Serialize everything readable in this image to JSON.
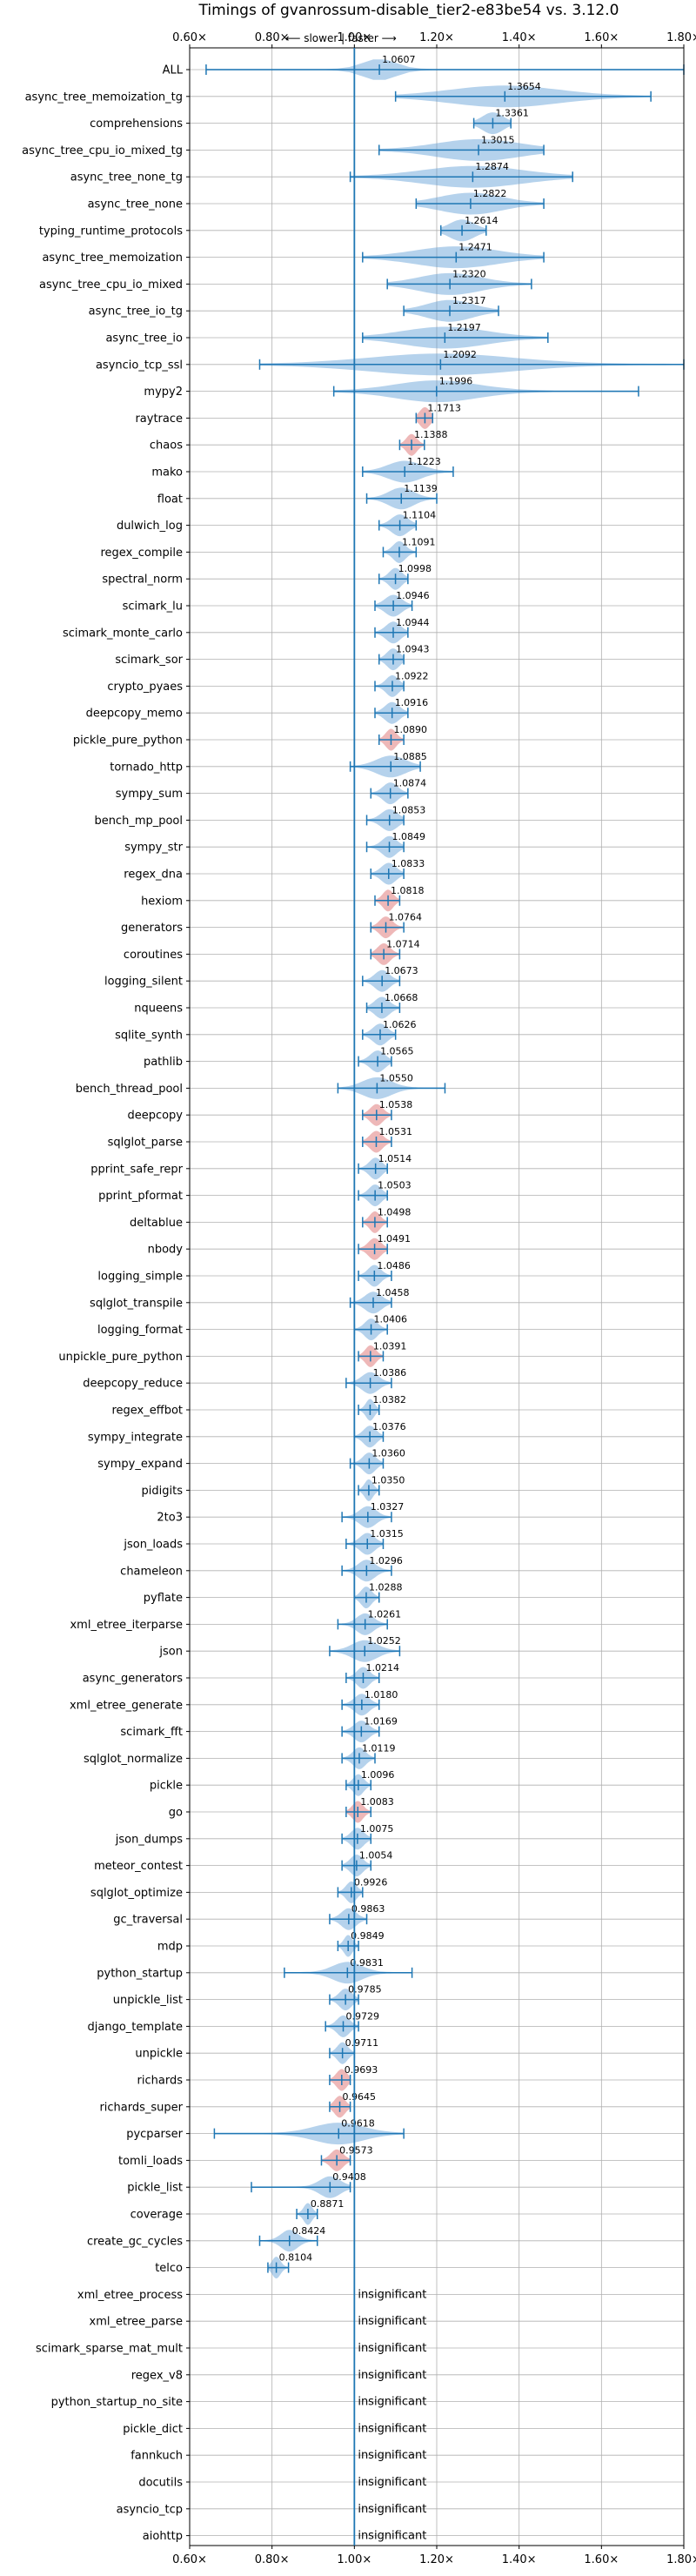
{
  "chart_data": {
    "type": "violin",
    "title": "Timings of gvanrossum-disable_tier2-e83be54 vs. 3.12.0",
    "direction_hint": "⟵ slower | faster ⟶",
    "xlim": [
      0.6,
      1.8
    ],
    "x_ticks": [
      0.6,
      0.8,
      1.0,
      1.2,
      1.4,
      1.6,
      1.8
    ],
    "x_tick_labels": [
      "0.60×",
      "0.80×",
      "1.00×",
      "1.20×",
      "1.40×",
      "1.60×",
      "1.80×"
    ],
    "grid": true,
    "reference_line": 1.0,
    "colors": {
      "normal": "#5b9bd5",
      "significant_slower": "#e8a0a0",
      "line": "#1f77b4"
    },
    "insignificant_label": "insignificant",
    "benchmarks": [
      {
        "name": "ALL",
        "median": 1.0607,
        "min": 0.64,
        "max": 1.8,
        "spread": 0.08,
        "slower": false
      },
      {
        "name": "async_tree_memoization_tg",
        "median": 1.3654,
        "min": 1.1,
        "max": 1.72,
        "spread": 0.26,
        "slower": false
      },
      {
        "name": "comprehensions",
        "median": 1.3361,
        "min": 1.29,
        "max": 1.38,
        "spread": 0.05,
        "slower": false
      },
      {
        "name": "async_tree_cpu_io_mixed_tg",
        "median": 1.3015,
        "min": 1.06,
        "max": 1.46,
        "spread": 0.2,
        "slower": false
      },
      {
        "name": "async_tree_none_tg",
        "median": 1.2874,
        "min": 0.99,
        "max": 1.53,
        "spread": 0.24,
        "slower": false
      },
      {
        "name": "async_tree_none",
        "median": 1.2822,
        "min": 1.15,
        "max": 1.46,
        "spread": 0.15,
        "slower": false
      },
      {
        "name": "typing_runtime_protocols",
        "median": 1.2614,
        "min": 1.21,
        "max": 1.32,
        "spread": 0.06,
        "slower": false
      },
      {
        "name": "async_tree_memoization",
        "median": 1.2471,
        "min": 1.02,
        "max": 1.46,
        "spread": 0.2,
        "slower": false
      },
      {
        "name": "async_tree_cpu_io_mixed",
        "median": 1.232,
        "min": 1.08,
        "max": 1.43,
        "spread": 0.15,
        "slower": false
      },
      {
        "name": "async_tree_io_tg",
        "median": 1.2317,
        "min": 1.12,
        "max": 1.35,
        "spread": 0.11,
        "slower": false
      },
      {
        "name": "async_tree_io",
        "median": 1.2197,
        "min": 1.02,
        "max": 1.47,
        "spread": 0.2,
        "slower": false
      },
      {
        "name": "asyncio_tcp_ssl",
        "median": 1.2092,
        "min": 0.77,
        "max": 1.8,
        "spread": 0.35,
        "slower": false
      },
      {
        "name": "mypy2",
        "median": 1.1996,
        "min": 0.95,
        "max": 1.69,
        "spread": 0.2,
        "slower": false
      },
      {
        "name": "raytrace",
        "median": 1.1713,
        "min": 1.15,
        "max": 1.19,
        "spread": 0.025,
        "slower": true
      },
      {
        "name": "chaos",
        "median": 1.1388,
        "min": 1.11,
        "max": 1.17,
        "spread": 0.025,
        "slower": true
      },
      {
        "name": "mako",
        "median": 1.1223,
        "min": 1.02,
        "max": 1.24,
        "spread": 0.08,
        "slower": false
      },
      {
        "name": "float",
        "median": 1.1139,
        "min": 1.03,
        "max": 1.2,
        "spread": 0.06,
        "slower": false
      },
      {
        "name": "dulwich_log",
        "median": 1.1104,
        "min": 1.06,
        "max": 1.15,
        "spread": 0.04,
        "slower": false
      },
      {
        "name": "regex_compile",
        "median": 1.1091,
        "min": 1.07,
        "max": 1.15,
        "spread": 0.03,
        "slower": false
      },
      {
        "name": "spectral_norm",
        "median": 1.0998,
        "min": 1.06,
        "max": 1.13,
        "spread": 0.03,
        "slower": false
      },
      {
        "name": "scimark_lu",
        "median": 1.0946,
        "min": 1.05,
        "max": 1.14,
        "spread": 0.04,
        "slower": false
      },
      {
        "name": "scimark_monte_carlo",
        "median": 1.0944,
        "min": 1.05,
        "max": 1.13,
        "spread": 0.035,
        "slower": false
      },
      {
        "name": "scimark_sor",
        "median": 1.0943,
        "min": 1.06,
        "max": 1.12,
        "spread": 0.03,
        "slower": false
      },
      {
        "name": "crypto_pyaes",
        "median": 1.0922,
        "min": 1.05,
        "max": 1.12,
        "spread": 0.03,
        "slower": false
      },
      {
        "name": "deepcopy_memo",
        "median": 1.0916,
        "min": 1.05,
        "max": 1.13,
        "spread": 0.035,
        "slower": false
      },
      {
        "name": "pickle_pure_python",
        "median": 1.089,
        "min": 1.06,
        "max": 1.12,
        "spread": 0.025,
        "slower": true
      },
      {
        "name": "tornado_http",
        "median": 1.0885,
        "min": 0.99,
        "max": 1.16,
        "spread": 0.07,
        "slower": false
      },
      {
        "name": "sympy_sum",
        "median": 1.0874,
        "min": 1.04,
        "max": 1.13,
        "spread": 0.035,
        "slower": false
      },
      {
        "name": "bench_mp_pool",
        "median": 1.0853,
        "min": 1.03,
        "max": 1.12,
        "spread": 0.04,
        "slower": false
      },
      {
        "name": "sympy_str",
        "median": 1.0849,
        "min": 1.03,
        "max": 1.12,
        "spread": 0.035,
        "slower": false
      },
      {
        "name": "regex_dna",
        "median": 1.0833,
        "min": 1.04,
        "max": 1.12,
        "spread": 0.035,
        "slower": false
      },
      {
        "name": "hexiom",
        "median": 1.0818,
        "min": 1.05,
        "max": 1.11,
        "spread": 0.025,
        "slower": true
      },
      {
        "name": "generators",
        "median": 1.0764,
        "min": 1.04,
        "max": 1.12,
        "spread": 0.03,
        "slower": true
      },
      {
        "name": "coroutines",
        "median": 1.0714,
        "min": 1.04,
        "max": 1.11,
        "spread": 0.03,
        "slower": true
      },
      {
        "name": "logging_silent",
        "median": 1.0673,
        "min": 1.02,
        "max": 1.11,
        "spread": 0.035,
        "slower": false
      },
      {
        "name": "nqueens",
        "median": 1.0668,
        "min": 1.03,
        "max": 1.11,
        "spread": 0.035,
        "slower": false
      },
      {
        "name": "sqlite_synth",
        "median": 1.0626,
        "min": 1.02,
        "max": 1.1,
        "spread": 0.035,
        "slower": false
      },
      {
        "name": "pathlib",
        "median": 1.0565,
        "min": 1.01,
        "max": 1.09,
        "spread": 0.035,
        "slower": false
      },
      {
        "name": "bench_thread_pool",
        "median": 1.055,
        "min": 0.96,
        "max": 1.22,
        "spread": 0.07,
        "slower": false
      },
      {
        "name": "deepcopy",
        "median": 1.0538,
        "min": 1.02,
        "max": 1.09,
        "spread": 0.03,
        "slower": true
      },
      {
        "name": "sqlglot_parse",
        "median": 1.0531,
        "min": 1.02,
        "max": 1.09,
        "spread": 0.03,
        "slower": true
      },
      {
        "name": "pprint_safe_repr",
        "median": 1.0514,
        "min": 1.01,
        "max": 1.08,
        "spread": 0.03,
        "slower": false
      },
      {
        "name": "pprint_pformat",
        "median": 1.0503,
        "min": 1.01,
        "max": 1.08,
        "spread": 0.03,
        "slower": false
      },
      {
        "name": "deltablue",
        "median": 1.0498,
        "min": 1.02,
        "max": 1.08,
        "spread": 0.025,
        "slower": true
      },
      {
        "name": "nbody",
        "median": 1.0491,
        "min": 1.01,
        "max": 1.08,
        "spread": 0.03,
        "slower": true
      },
      {
        "name": "logging_simple",
        "median": 1.0486,
        "min": 1.01,
        "max": 1.09,
        "spread": 0.03,
        "slower": false
      },
      {
        "name": "sqlglot_transpile",
        "median": 1.0458,
        "min": 0.99,
        "max": 1.09,
        "spread": 0.04,
        "slower": false
      },
      {
        "name": "logging_format",
        "median": 1.0406,
        "min": 1.0,
        "max": 1.08,
        "spread": 0.03,
        "slower": false
      },
      {
        "name": "unpickle_pure_python",
        "median": 1.0391,
        "min": 1.01,
        "max": 1.07,
        "spread": 0.025,
        "slower": true
      },
      {
        "name": "deepcopy_reduce",
        "median": 1.0386,
        "min": 0.98,
        "max": 1.09,
        "spread": 0.04,
        "slower": false
      },
      {
        "name": "regex_effbot",
        "median": 1.0382,
        "min": 1.01,
        "max": 1.06,
        "spread": 0.02,
        "slower": false
      },
      {
        "name": "sympy_integrate",
        "median": 1.0376,
        "min": 1.0,
        "max": 1.07,
        "spread": 0.03,
        "slower": false
      },
      {
        "name": "sympy_expand",
        "median": 1.036,
        "min": 0.99,
        "max": 1.07,
        "spread": 0.03,
        "slower": false
      },
      {
        "name": "pidigits",
        "median": 1.035,
        "min": 1.01,
        "max": 1.06,
        "spread": 0.02,
        "slower": false
      },
      {
        "name": "2to3",
        "median": 1.0327,
        "min": 0.97,
        "max": 1.09,
        "spread": 0.04,
        "slower": false
      },
      {
        "name": "json_loads",
        "median": 1.0315,
        "min": 0.98,
        "max": 1.07,
        "spread": 0.035,
        "slower": false
      },
      {
        "name": "chameleon",
        "median": 1.0296,
        "min": 0.97,
        "max": 1.09,
        "spread": 0.04,
        "slower": false
      },
      {
        "name": "pyflate",
        "median": 1.0288,
        "min": 1.0,
        "max": 1.06,
        "spread": 0.025,
        "slower": false
      },
      {
        "name": "xml_etree_iterparse",
        "median": 1.0261,
        "min": 0.96,
        "max": 1.08,
        "spread": 0.04,
        "slower": false
      },
      {
        "name": "json",
        "median": 1.0252,
        "min": 0.94,
        "max": 1.11,
        "spread": 0.06,
        "slower": false
      },
      {
        "name": "async_generators",
        "median": 1.0214,
        "min": 0.98,
        "max": 1.06,
        "spread": 0.03,
        "slower": false
      },
      {
        "name": "xml_etree_generate",
        "median": 1.018,
        "min": 0.97,
        "max": 1.06,
        "spread": 0.035,
        "slower": false
      },
      {
        "name": "scimark_fft",
        "median": 1.0169,
        "min": 0.97,
        "max": 1.06,
        "spread": 0.035,
        "slower": false
      },
      {
        "name": "sqlglot_normalize",
        "median": 1.0119,
        "min": 0.97,
        "max": 1.05,
        "spread": 0.03,
        "slower": false
      },
      {
        "name": "pickle",
        "median": 1.0096,
        "min": 0.98,
        "max": 1.04,
        "spread": 0.025,
        "slower": false
      },
      {
        "name": "go",
        "median": 1.0083,
        "min": 0.98,
        "max": 1.04,
        "spread": 0.025,
        "slower": true
      },
      {
        "name": "json_dumps",
        "median": 1.0075,
        "min": 0.97,
        "max": 1.04,
        "spread": 0.03,
        "slower": false
      },
      {
        "name": "meteor_contest",
        "median": 1.0054,
        "min": 0.97,
        "max": 1.04,
        "spread": 0.03,
        "slower": false
      },
      {
        "name": "sqlglot_optimize",
        "median": 0.9926,
        "min": 0.96,
        "max": 1.02,
        "spread": 0.025,
        "slower": false
      },
      {
        "name": "gc_traversal",
        "median": 0.9863,
        "min": 0.94,
        "max": 1.03,
        "spread": 0.035,
        "slower": false
      },
      {
        "name": "mdp",
        "median": 0.9849,
        "min": 0.96,
        "max": 1.01,
        "spread": 0.02,
        "slower": false
      },
      {
        "name": "python_startup",
        "median": 0.9831,
        "min": 0.83,
        "max": 1.14,
        "spread": 0.07,
        "slower": false
      },
      {
        "name": "unpickle_list",
        "median": 0.9785,
        "min": 0.94,
        "max": 1.01,
        "spread": 0.03,
        "slower": false
      },
      {
        "name": "django_template",
        "median": 0.9729,
        "min": 0.93,
        "max": 1.01,
        "spread": 0.03,
        "slower": false
      },
      {
        "name": "unpickle",
        "median": 0.9711,
        "min": 0.94,
        "max": 1.0,
        "spread": 0.025,
        "slower": false
      },
      {
        "name": "richards",
        "median": 0.9693,
        "min": 0.94,
        "max": 0.99,
        "spread": 0.025,
        "slower": true
      },
      {
        "name": "richards_super",
        "median": 0.9645,
        "min": 0.94,
        "max": 0.99,
        "spread": 0.025,
        "slower": true
      },
      {
        "name": "pycparser",
        "median": 0.9618,
        "min": 0.66,
        "max": 1.12,
        "spread": 0.12,
        "slower": false
      },
      {
        "name": "tomli_loads",
        "median": 0.9573,
        "min": 0.92,
        "max": 0.99,
        "spread": 0.03,
        "slower": true
      },
      {
        "name": "pickle_list",
        "median": 0.9408,
        "min": 0.75,
        "max": 0.99,
        "spread": 0.05,
        "slower": false
      },
      {
        "name": "coverage",
        "median": 0.8871,
        "min": 0.86,
        "max": 0.91,
        "spread": 0.02,
        "slower": false
      },
      {
        "name": "create_gc_cycles",
        "median": 0.8424,
        "min": 0.77,
        "max": 0.91,
        "spread": 0.04,
        "slower": false
      },
      {
        "name": "telco",
        "median": 0.8104,
        "min": 0.79,
        "max": 0.84,
        "spread": 0.02,
        "slower": false
      },
      {
        "name": "xml_etree_process",
        "insignificant": true
      },
      {
        "name": "xml_etree_parse",
        "insignificant": true
      },
      {
        "name": "scimark_sparse_mat_mult",
        "insignificant": true
      },
      {
        "name": "regex_v8",
        "insignificant": true
      },
      {
        "name": "python_startup_no_site",
        "insignificant": true
      },
      {
        "name": "pickle_dict",
        "insignificant": true
      },
      {
        "name": "fannkuch",
        "insignificant": true
      },
      {
        "name": "docutils",
        "insignificant": true
      },
      {
        "name": "asyncio_tcp",
        "insignificant": true
      },
      {
        "name": "aiohttp",
        "insignificant": true
      }
    ]
  }
}
